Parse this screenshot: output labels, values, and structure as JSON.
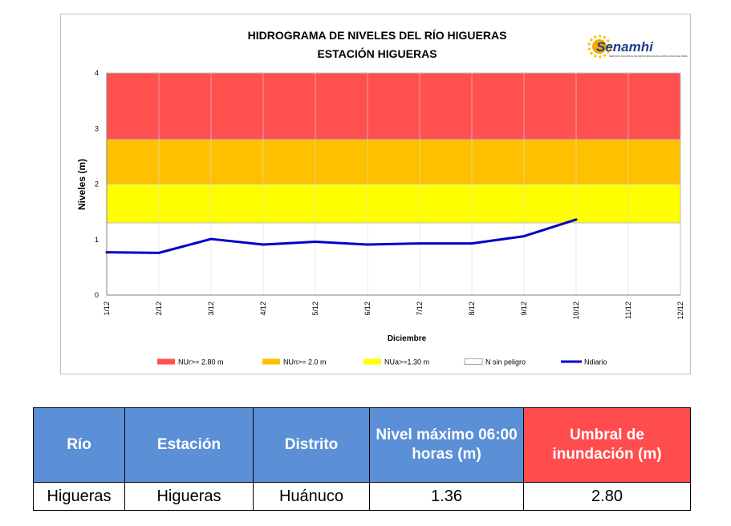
{
  "chart": {
    "title_line1": "HIDROGRAMA DE NIVELES DEL RÍO HIGUERAS",
    "title_line2": "ESTACIÓN HIGUERAS",
    "logo_text": "Senamhi",
    "logo_subtext": "SERVICIO NACIONAL DE METEOROLOGÍA E HIDROLOGÍA DEL PERÚ",
    "legend": [
      {
        "label": "NUr>= 2.80 m",
        "color": "#ff5050",
        "kind": "box"
      },
      {
        "label": "NUn>= 2.0 m",
        "color": "#ffc000",
        "kind": "box"
      },
      {
        "label": "NUa>=1.30 m",
        "color": "#ffff00",
        "kind": "box"
      },
      {
        "label": "N sin peligro",
        "color": "#ffffff",
        "kind": "box"
      },
      {
        "label": "Ndiario",
        "color": "#0000cc",
        "kind": "line"
      }
    ]
  },
  "chart_data": {
    "type": "line",
    "title": "HIDROGRAMA DE NIVELES DEL RÍO HIGUERAS — ESTACIÓN HIGUERAS",
    "xlabel": "Diciembre",
    "ylabel": "Niveles (m)",
    "ylim": [
      0,
      4
    ],
    "yticks": [
      0,
      1,
      2,
      3,
      4
    ],
    "categories": [
      "1/12",
      "2/12",
      "3/12",
      "4/12",
      "5/12",
      "6/12",
      "7/12",
      "8/12",
      "9/12",
      "10/12",
      "11/12",
      "12/12"
    ],
    "bands": [
      {
        "name": "N sin peligro",
        "from": 0,
        "to": 1.3,
        "color": "#ffffff"
      },
      {
        "name": "NUa>=1.30 m",
        "from": 1.3,
        "to": 2.0,
        "color": "#ffff00"
      },
      {
        "name": "NUn>= 2.0 m",
        "from": 2.0,
        "to": 2.8,
        "color": "#ffc000"
      },
      {
        "name": "NUr>= 2.80 m",
        "from": 2.8,
        "to": 4.0,
        "color": "#ff5050"
      }
    ],
    "series": [
      {
        "name": "Ndiario",
        "color": "#0000cc",
        "x": [
          0,
          1,
          2,
          3,
          4,
          5,
          6,
          7,
          8,
          9
        ],
        "values": [
          0.77,
          0.76,
          1.01,
          0.91,
          0.96,
          0.91,
          0.93,
          0.93,
          1.06,
          1.36
        ]
      }
    ],
    "grid": true,
    "legend_position": "bottom"
  },
  "table": {
    "headers": [
      {
        "label": "Río",
        "color": "#5b8fd6"
      },
      {
        "label": "Estación",
        "color": "#5b8fd6"
      },
      {
        "label": "Distrito",
        "color": "#5b8fd6"
      },
      {
        "label": "Nivel máximo 06:00 horas (m)",
        "color": "#5b8fd6"
      },
      {
        "label": "Umbral de inundación (m)",
        "color": "#ff4d4d"
      }
    ],
    "row": [
      "Higueras",
      "Higueras",
      "Huánuco",
      "1.36",
      "2.80"
    ]
  }
}
